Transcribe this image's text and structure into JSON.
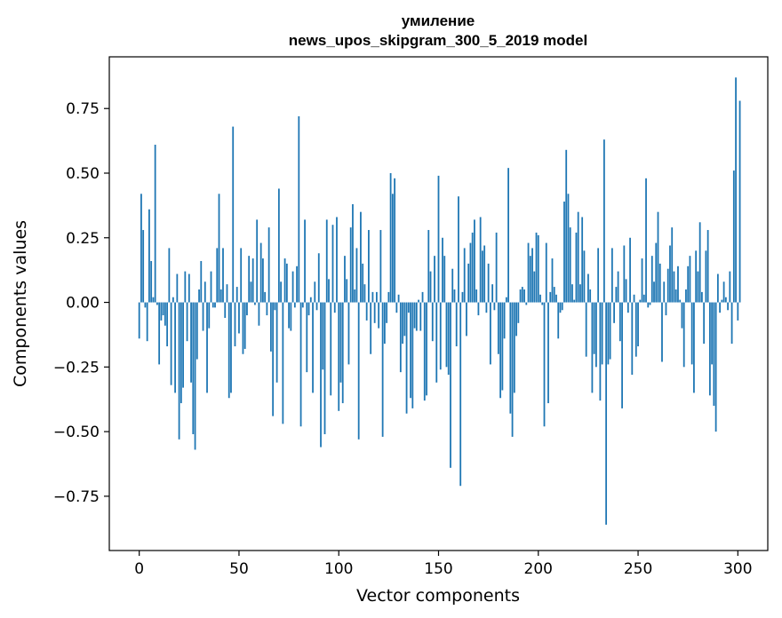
{
  "chart_data": {
    "type": "bar",
    "title": "умиление",
    "subtitle": "news_upos_skipgram_300_5_2019 model",
    "xlabel": "Vector components",
    "ylabel": "Components values",
    "xlim": [
      -15,
      315
    ],
    "ylim": [
      -0.96,
      0.95
    ],
    "xticks": [
      0,
      50,
      100,
      150,
      200,
      250,
      300
    ],
    "yticks": [
      -0.75,
      -0.5,
      -0.25,
      0.0,
      0.25,
      0.5,
      0.75
    ],
    "ytick_labels": [
      "−0.75",
      "−0.50",
      "−0.25",
      "0.00",
      "0.25",
      "0.50",
      "0.75"
    ],
    "bar_color": "#1f77b4",
    "values": [
      -0.14,
      0.42,
      0.28,
      -0.02,
      -0.15,
      0.36,
      0.16,
      0.02,
      0.61,
      -0.01,
      -0.24,
      -0.07,
      -0.05,
      -0.09,
      -0.17,
      0.21,
      -0.32,
      0.02,
      -0.35,
      0.11,
      -0.53,
      -0.39,
      -0.33,
      0.12,
      -0.15,
      0.11,
      -0.31,
      -0.51,
      -0.57,
      -0.22,
      0.05,
      0.16,
      -0.11,
      0.08,
      -0.35,
      -0.1,
      0.12,
      -0.02,
      -0.02,
      0.21,
      0.42,
      0.05,
      0.21,
      -0.06,
      0.07,
      -0.37,
      -0.35,
      0.68,
      -0.17,
      0.06,
      -0.12,
      0.21,
      -0.2,
      -0.18,
      -0.05,
      0.18,
      0.08,
      0.17,
      -0.01,
      0.32,
      -0.09,
      0.23,
      0.17,
      0.04,
      -0.05,
      0.29,
      -0.19,
      -0.44,
      -0.03,
      -0.31,
      0.44,
      0.08,
      -0.47,
      0.17,
      0.15,
      -0.1,
      -0.11,
      0.12,
      -0.02,
      0.14,
      0.72,
      -0.48,
      -0.02,
      0.32,
      -0.27,
      -0.05,
      0.02,
      -0.35,
      0.08,
      -0.03,
      0.19,
      -0.56,
      -0.26,
      -0.51,
      0.32,
      0.09,
      -0.36,
      0.3,
      -0.04,
      0.33,
      -0.42,
      -0.31,
      -0.39,
      0.18,
      0.09,
      -0.24,
      0.29,
      0.38,
      0.05,
      0.21,
      -0.53,
      0.35,
      0.15,
      0.07,
      -0.07,
      0.28,
      -0.2,
      0.04,
      -0.08,
      0.04,
      -0.1,
      0.28,
      -0.52,
      -0.16,
      -0.08,
      0.04,
      0.5,
      0.42,
      0.48,
      -0.04,
      0.03,
      -0.27,
      -0.16,
      -0.13,
      -0.43,
      -0.04,
      -0.37,
      -0.41,
      -0.1,
      -0.11,
      0.01,
      -0.11,
      0.04,
      -0.38,
      -0.36,
      0.28,
      0.12,
      -0.15,
      0.18,
      -0.31,
      0.49,
      -0.26,
      0.25,
      0.18,
      -0.25,
      -0.28,
      -0.64,
      0.13,
      0.05,
      -0.17,
      0.41,
      -0.71,
      0.04,
      0.21,
      -0.13,
      0.15,
      0.23,
      0.27,
      0.32,
      0.05,
      -0.05,
      0.33,
      0.2,
      0.22,
      -0.04,
      0.15,
      -0.24,
      0.07,
      -0.03,
      0.27,
      -0.2,
      -0.37,
      -0.34,
      -0.14,
      0.02,
      0.52,
      -0.43,
      -0.52,
      -0.35,
      -0.13,
      -0.08,
      0.05,
      0.06,
      0.05,
      -0.01,
      0.23,
      0.18,
      0.21,
      0.12,
      0.27,
      0.26,
      0.03,
      -0.01,
      -0.48,
      0.23,
      -0.39,
      0.04,
      0.17,
      0.06,
      0.03,
      -0.14,
      -0.04,
      -0.03,
      0.39,
      0.59,
      0.42,
      0.29,
      0.07,
      0.01,
      0.27,
      0.35,
      0.07,
      0.33,
      0.2,
      -0.21,
      0.11,
      0.05,
      -0.35,
      -0.2,
      -0.25,
      0.21,
      -0.38,
      -0.24,
      0.63,
      -0.86,
      -0.24,
      -0.22,
      0.21,
      -0.08,
      0.06,
      0.12,
      -0.15,
      -0.41,
      0.22,
      0.09,
      -0.04,
      0.25,
      -0.28,
      0.03,
      -0.21,
      -0.17,
      0.01,
      0.17,
      0.03,
      0.48,
      -0.02,
      -0.01,
      0.18,
      0.08,
      0.23,
      0.35,
      0.15,
      -0.23,
      0.08,
      -0.05,
      0.13,
      0.22,
      0.29,
      0.12,
      0.05,
      0.14,
      0.01,
      -0.1,
      -0.25,
      0.05,
      0.14,
      0.18,
      -0.24,
      -0.35,
      0.2,
      0.12,
      0.31,
      0.04,
      -0.16,
      0.2,
      0.28,
      -0.36,
      -0.24,
      -0.4,
      -0.5,
      0.11,
      -0.04,
      0.01,
      0.08,
      0.02,
      -0.03,
      0.12,
      -0.16,
      0.51,
      0.87,
      -0.07,
      0.78
    ]
  }
}
